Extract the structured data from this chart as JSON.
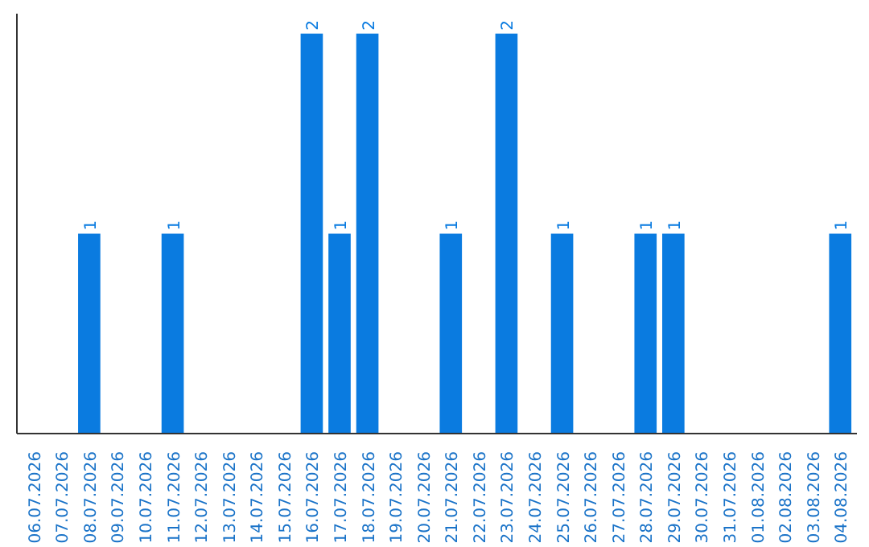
{
  "chart_data": {
    "type": "bar",
    "categories": [
      "06.07.2026",
      "07.07.2026",
      "08.07.2026",
      "09.07.2026",
      "10.07.2026",
      "11.07.2026",
      "12.07.2026",
      "13.07.2026",
      "14.07.2026",
      "15.07.2026",
      "16.07.2026",
      "17.07.2026",
      "18.07.2026",
      "19.07.2026",
      "20.07.2026",
      "21.07.2026",
      "22.07.2026",
      "23.07.2026",
      "24.07.2026",
      "25.07.2026",
      "26.07.2026",
      "27.07.2026",
      "28.07.2026",
      "29.07.2026",
      "30.07.2026",
      "31.07.2026",
      "01.08.2026",
      "02.08.2026",
      "03.08.2026",
      "04.08.2026"
    ],
    "values": [
      null,
      null,
      1,
      null,
      null,
      1,
      null,
      null,
      null,
      null,
      2,
      1,
      2,
      null,
      null,
      1,
      null,
      2,
      null,
      1,
      null,
      null,
      1,
      1,
      null,
      null,
      null,
      null,
      null,
      1
    ],
    "color": "#0a7be0",
    "ylim": [
      0,
      2.1
    ],
    "tick_labels": "x",
    "data_labels": true,
    "grid": false
  }
}
